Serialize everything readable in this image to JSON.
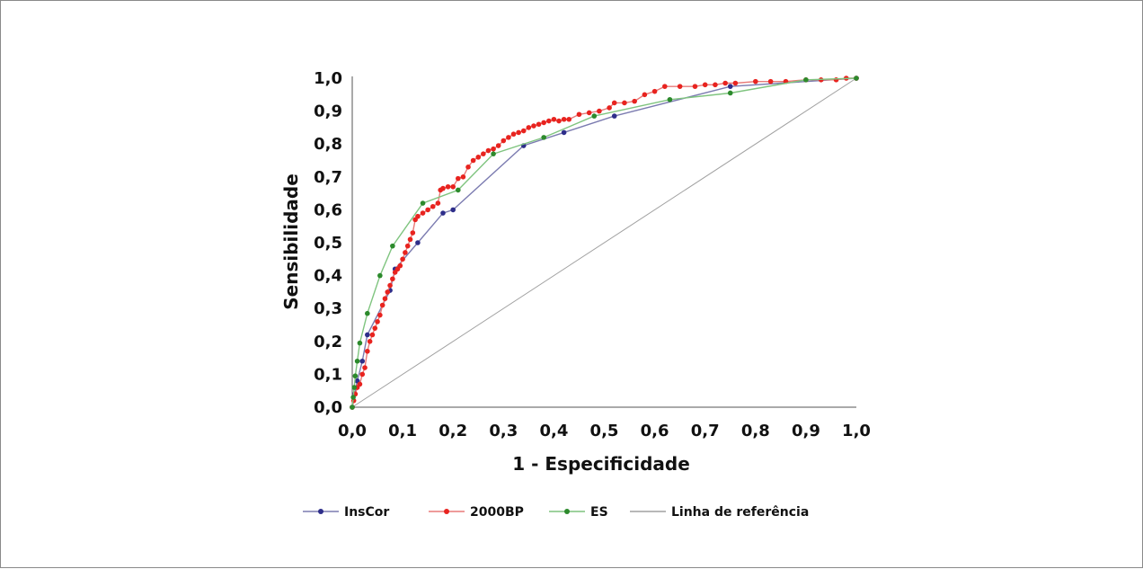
{
  "chart_data": {
    "type": "line",
    "title": "",
    "xlabel": "1 - Especificidade",
    "ylabel": "Sensibilidade",
    "xlim": [
      0,
      1
    ],
    "ylim": [
      0,
      1
    ],
    "x_tick_labels": [
      "0,0",
      "0,1",
      "0,2",
      "0,3",
      "0,4",
      "0,5",
      "0,6",
      "0,7",
      "0,8",
      "0,9",
      "1,0"
    ],
    "y_tick_labels": [
      "0,0",
      "0,1",
      "0,2",
      "0,3",
      "0,4",
      "0,5",
      "0,6",
      "0,7",
      "0,8",
      "0,9",
      "1,0"
    ],
    "grid": false,
    "legend_position": "bottom",
    "series": [
      {
        "name": "InsCor",
        "color": "#2e2e8a",
        "line_color": "#7b7bb0",
        "points": [
          [
            0,
            0
          ],
          [
            0.005,
            0.04
          ],
          [
            0.01,
            0.08
          ],
          [
            0.02,
            0.14
          ],
          [
            0.03,
            0.22
          ],
          [
            0.075,
            0.355
          ],
          [
            0.085,
            0.42
          ],
          [
            0.13,
            0.5
          ],
          [
            0.18,
            0.59
          ],
          [
            0.2,
            0.6
          ],
          [
            0.34,
            0.795
          ],
          [
            0.42,
            0.835
          ],
          [
            0.52,
            0.885
          ],
          [
            0.75,
            0.975
          ],
          [
            1,
            1
          ]
        ]
      },
      {
        "name": "2000BP",
        "color": "#e8231f",
        "line_color": "#e87a78",
        "points": [
          [
            0,
            0
          ],
          [
            0.003,
            0.02
          ],
          [
            0.006,
            0.04
          ],
          [
            0.01,
            0.06
          ],
          [
            0.015,
            0.07
          ],
          [
            0.02,
            0.1
          ],
          [
            0.025,
            0.12
          ],
          [
            0.03,
            0.17
          ],
          [
            0.035,
            0.2
          ],
          [
            0.04,
            0.22
          ],
          [
            0.045,
            0.24
          ],
          [
            0.05,
            0.26
          ],
          [
            0.055,
            0.28
          ],
          [
            0.06,
            0.31
          ],
          [
            0.065,
            0.33
          ],
          [
            0.07,
            0.35
          ],
          [
            0.075,
            0.37
          ],
          [
            0.08,
            0.39
          ],
          [
            0.085,
            0.41
          ],
          [
            0.09,
            0.42
          ],
          [
            0.095,
            0.43
          ],
          [
            0.1,
            0.45
          ],
          [
            0.105,
            0.47
          ],
          [
            0.11,
            0.49
          ],
          [
            0.115,
            0.51
          ],
          [
            0.12,
            0.53
          ],
          [
            0.125,
            0.57
          ],
          [
            0.13,
            0.58
          ],
          [
            0.14,
            0.59
          ],
          [
            0.15,
            0.6
          ],
          [
            0.16,
            0.61
          ],
          [
            0.17,
            0.62
          ],
          [
            0.175,
            0.66
          ],
          [
            0.18,
            0.665
          ],
          [
            0.19,
            0.67
          ],
          [
            0.2,
            0.67
          ],
          [
            0.21,
            0.695
          ],
          [
            0.22,
            0.7
          ],
          [
            0.23,
            0.73
          ],
          [
            0.24,
            0.75
          ],
          [
            0.25,
            0.76
          ],
          [
            0.26,
            0.77
          ],
          [
            0.27,
            0.78
          ],
          [
            0.28,
            0.785
          ],
          [
            0.29,
            0.795
          ],
          [
            0.3,
            0.81
          ],
          [
            0.31,
            0.82
          ],
          [
            0.32,
            0.83
          ],
          [
            0.33,
            0.835
          ],
          [
            0.34,
            0.84
          ],
          [
            0.35,
            0.85
          ],
          [
            0.36,
            0.855
          ],
          [
            0.37,
            0.86
          ],
          [
            0.38,
            0.865
          ],
          [
            0.39,
            0.87
          ],
          [
            0.4,
            0.875
          ],
          [
            0.41,
            0.87
          ],
          [
            0.42,
            0.875
          ],
          [
            0.43,
            0.875
          ],
          [
            0.45,
            0.89
          ],
          [
            0.47,
            0.895
          ],
          [
            0.49,
            0.9
          ],
          [
            0.51,
            0.91
          ],
          [
            0.52,
            0.925
          ],
          [
            0.54,
            0.925
          ],
          [
            0.56,
            0.93
          ],
          [
            0.58,
            0.95
          ],
          [
            0.6,
            0.96
          ],
          [
            0.62,
            0.975
          ],
          [
            0.65,
            0.975
          ],
          [
            0.68,
            0.975
          ],
          [
            0.7,
            0.98
          ],
          [
            0.72,
            0.98
          ],
          [
            0.74,
            0.985
          ],
          [
            0.76,
            0.985
          ],
          [
            0.8,
            0.99
          ],
          [
            0.83,
            0.99
          ],
          [
            0.86,
            0.99
          ],
          [
            0.9,
            0.995
          ],
          [
            0.93,
            0.995
          ],
          [
            0.96,
            0.995
          ],
          [
            0.98,
            1.0
          ],
          [
            1,
            1
          ]
        ]
      },
      {
        "name": "ES",
        "color": "#2c8a2c",
        "line_color": "#7fc47f",
        "points": [
          [
            0,
            0
          ],
          [
            0.002,
            0.03
          ],
          [
            0.004,
            0.06
          ],
          [
            0.006,
            0.095
          ],
          [
            0.01,
            0.14
          ],
          [
            0.015,
            0.195
          ],
          [
            0.03,
            0.285
          ],
          [
            0.055,
            0.4
          ],
          [
            0.08,
            0.49
          ],
          [
            0.14,
            0.62
          ],
          [
            0.21,
            0.66
          ],
          [
            0.28,
            0.77
          ],
          [
            0.38,
            0.82
          ],
          [
            0.48,
            0.885
          ],
          [
            0.63,
            0.935
          ],
          [
            0.75,
            0.955
          ],
          [
            0.9,
            0.995
          ],
          [
            1,
            1
          ]
        ]
      },
      {
        "name": "Linha de referência",
        "color": "#a0a0a0",
        "line_color": "#a0a0a0",
        "points": [
          [
            0,
            0
          ],
          [
            1,
            1
          ]
        ]
      }
    ]
  }
}
